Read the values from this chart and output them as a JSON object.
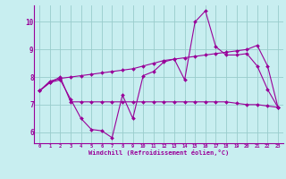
{
  "xlabel": "Windchill (Refroidissement éolien,°C)",
  "xlim": [
    -0.5,
    23.5
  ],
  "ylim": [
    5.6,
    10.6
  ],
  "yticks": [
    6,
    7,
    8,
    9,
    10
  ],
  "xticks": [
    0,
    1,
    2,
    3,
    4,
    5,
    6,
    7,
    8,
    9,
    10,
    11,
    12,
    13,
    14,
    15,
    16,
    17,
    18,
    19,
    20,
    21,
    22,
    23
  ],
  "background_color": "#c8eef0",
  "line_color": "#990099",
  "grid_color": "#99cccc",
  "series": {
    "line1_x": [
      0,
      1,
      2,
      3,
      4,
      5,
      6,
      7,
      8,
      9,
      10,
      11,
      12,
      13,
      14,
      15,
      16,
      17,
      18,
      19,
      20,
      21,
      22,
      23
    ],
    "line1_y": [
      7.5,
      7.8,
      7.9,
      7.2,
      6.5,
      6.1,
      6.05,
      5.8,
      7.35,
      6.5,
      8.05,
      8.2,
      8.55,
      8.65,
      7.9,
      10.0,
      10.4,
      9.1,
      8.8,
      8.8,
      8.85,
      8.4,
      7.55,
      6.9
    ],
    "line2_x": [
      0,
      1,
      2,
      3,
      4,
      5,
      6,
      7,
      8,
      9,
      10,
      11,
      12,
      13,
      14,
      15,
      16,
      17,
      18,
      19,
      20,
      21,
      22,
      23
    ],
    "line2_y": [
      7.5,
      7.85,
      7.95,
      8.0,
      8.05,
      8.1,
      8.15,
      8.2,
      8.25,
      8.3,
      8.4,
      8.5,
      8.6,
      8.65,
      8.7,
      8.75,
      8.8,
      8.85,
      8.9,
      8.95,
      9.0,
      9.15,
      8.4,
      6.9
    ],
    "line3_x": [
      0,
      1,
      2,
      3,
      4,
      5,
      6,
      7,
      8,
      9,
      10,
      11,
      12,
      13,
      14,
      15,
      16,
      17,
      18,
      19,
      20,
      21,
      22,
      23
    ],
    "line3_y": [
      7.5,
      7.8,
      8.0,
      7.1,
      7.1,
      7.1,
      7.1,
      7.1,
      7.1,
      7.1,
      7.1,
      7.1,
      7.1,
      7.1,
      7.1,
      7.1,
      7.1,
      7.1,
      7.1,
      7.05,
      7.0,
      7.0,
      6.95,
      6.9
    ]
  }
}
